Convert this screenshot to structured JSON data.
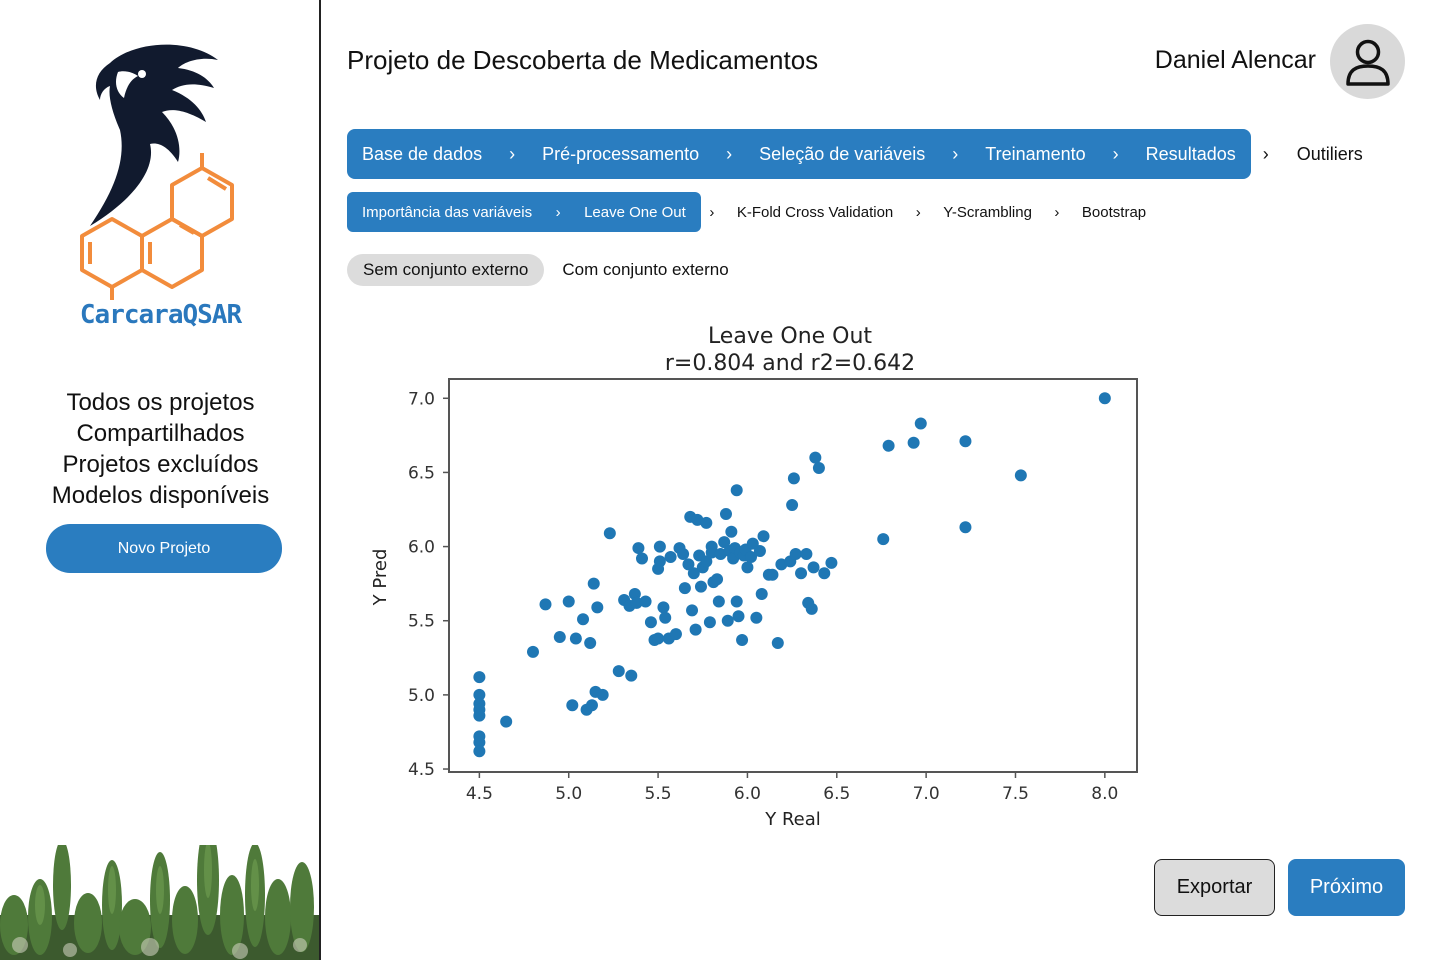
{
  "sidebar": {
    "brand": "CarcaraQSAR",
    "nav": [
      "Todos os projetos",
      "Compartilhados",
      "Projetos excluídos",
      "Modelos disponíveis"
    ],
    "new_project_label": "Novo Projeto"
  },
  "header": {
    "title": "Projeto de Descoberta de Medicamentos",
    "user_name": "Daniel Alencar"
  },
  "steps": {
    "active": [
      "Base de dados",
      "Pré-processamento",
      "Seleção de variáveis",
      "Treinamento",
      "Resultados"
    ],
    "inactive": [
      "Outiliers"
    ]
  },
  "substeps": {
    "active": [
      "Importância das variáveis",
      "Leave One Out"
    ],
    "inactive": [
      "K-Fold Cross Validation",
      "Y-Scrambling",
      "Bootstrap"
    ]
  },
  "toggles": {
    "active": "Sem conjunto externo",
    "inactive": "Com conjunto externo"
  },
  "footer": {
    "export_label": "Exportar",
    "next_label": "Próximo"
  },
  "colors": {
    "primary": "#2a7dc0",
    "points": "#1f77b4",
    "logo_dark": "#111a2e",
    "logo_orange": "#f28c3c"
  },
  "chart_data": {
    "type": "scatter",
    "title": "Leave One Out",
    "subtitle": "r=0.804 and r2=0.642",
    "xlabel": "Y Real",
    "ylabel": "Y Pred",
    "xlim": [
      4.33,
      8.18
    ],
    "ylim": [
      4.48,
      7.13
    ],
    "xticks": [
      "4.5",
      "5.0",
      "5.5",
      "6.0",
      "6.5",
      "7.0",
      "7.5",
      "8.0"
    ],
    "yticks": [
      "4.5",
      "5.0",
      "5.5",
      "6.0",
      "6.5",
      "7.0"
    ],
    "grid": false,
    "points": [
      [
        4.5,
        5.12
      ],
      [
        4.5,
        5.0
      ],
      [
        4.5,
        4.94
      ],
      [
        4.5,
        4.9
      ],
      [
        4.5,
        4.86
      ],
      [
        4.5,
        4.72
      ],
      [
        4.5,
        4.68
      ],
      [
        4.5,
        4.62
      ],
      [
        4.65,
        4.82
      ],
      [
        4.8,
        5.29
      ],
      [
        4.87,
        5.61
      ],
      [
        4.95,
        5.39
      ],
      [
        5.0,
        5.63
      ],
      [
        5.02,
        4.93
      ],
      [
        5.04,
        5.38
      ],
      [
        5.08,
        5.51
      ],
      [
        5.1,
        4.9
      ],
      [
        5.12,
        5.35
      ],
      [
        5.13,
        4.93
      ],
      [
        5.14,
        5.75
      ],
      [
        5.15,
        5.02
      ],
      [
        5.16,
        5.59
      ],
      [
        5.19,
        5.0
      ],
      [
        5.23,
        6.09
      ],
      [
        5.28,
        5.16
      ],
      [
        5.31,
        5.64
      ],
      [
        5.34,
        5.6
      ],
      [
        5.35,
        5.13
      ],
      [
        5.37,
        5.68
      ],
      [
        5.38,
        5.62
      ],
      [
        5.39,
        5.99
      ],
      [
        5.41,
        5.92
      ],
      [
        5.43,
        5.63
      ],
      [
        5.46,
        5.49
      ],
      [
        5.48,
        5.37
      ],
      [
        5.5,
        5.38
      ],
      [
        5.5,
        5.85
      ],
      [
        5.51,
        5.9
      ],
      [
        5.51,
        6.0
      ],
      [
        5.53,
        5.59
      ],
      [
        5.54,
        5.52
      ],
      [
        5.56,
        5.38
      ],
      [
        5.57,
        5.93
      ],
      [
        5.6,
        5.41
      ],
      [
        5.62,
        5.99
      ],
      [
        5.64,
        5.95
      ],
      [
        5.65,
        5.72
      ],
      [
        5.67,
        5.88
      ],
      [
        5.68,
        6.2
      ],
      [
        5.69,
        5.57
      ],
      [
        5.7,
        5.82
      ],
      [
        5.71,
        5.44
      ],
      [
        5.72,
        6.18
      ],
      [
        5.73,
        5.94
      ],
      [
        5.74,
        5.73
      ],
      [
        5.75,
        5.86
      ],
      [
        5.77,
        6.16
      ],
      [
        5.77,
        5.9
      ],
      [
        5.79,
        5.49
      ],
      [
        5.8,
        5.96
      ],
      [
        5.8,
        6.0
      ],
      [
        5.81,
        5.76
      ],
      [
        5.83,
        5.78
      ],
      [
        5.84,
        5.63
      ],
      [
        5.85,
        5.95
      ],
      [
        5.87,
        6.03
      ],
      [
        5.88,
        6.22
      ],
      [
        5.89,
        5.5
      ],
      [
        5.9,
        5.97
      ],
      [
        5.91,
        6.1
      ],
      [
        5.92,
        5.92
      ],
      [
        5.93,
        5.99
      ],
      [
        5.94,
        6.38
      ],
      [
        5.94,
        5.63
      ],
      [
        5.95,
        5.53
      ],
      [
        5.96,
        5.96
      ],
      [
        5.97,
        5.37
      ],
      [
        5.98,
        5.94
      ],
      [
        5.99,
        5.98
      ],
      [
        6.0,
        5.86
      ],
      [
        6.02,
        5.93
      ],
      [
        6.03,
        6.02
      ],
      [
        6.05,
        5.52
      ],
      [
        6.07,
        5.97
      ],
      [
        6.08,
        5.68
      ],
      [
        6.09,
        6.07
      ],
      [
        6.12,
        5.81
      ],
      [
        6.14,
        5.81
      ],
      [
        6.17,
        5.35
      ],
      [
        6.19,
        5.88
      ],
      [
        6.24,
        5.9
      ],
      [
        6.25,
        6.28
      ],
      [
        6.26,
        6.46
      ],
      [
        6.27,
        5.95
      ],
      [
        6.3,
        5.82
      ],
      [
        6.33,
        5.95
      ],
      [
        6.34,
        5.62
      ],
      [
        6.36,
        5.58
      ],
      [
        6.37,
        5.86
      ],
      [
        6.38,
        6.6
      ],
      [
        6.4,
        6.53
      ],
      [
        6.43,
        5.82
      ],
      [
        6.47,
        5.89
      ],
      [
        6.76,
        6.05
      ],
      [
        6.79,
        6.68
      ],
      [
        6.93,
        6.7
      ],
      [
        6.97,
        6.83
      ],
      [
        7.22,
        6.71
      ],
      [
        7.22,
        6.13
      ],
      [
        7.53,
        6.48
      ],
      [
        8.0,
        7.0
      ]
    ]
  }
}
